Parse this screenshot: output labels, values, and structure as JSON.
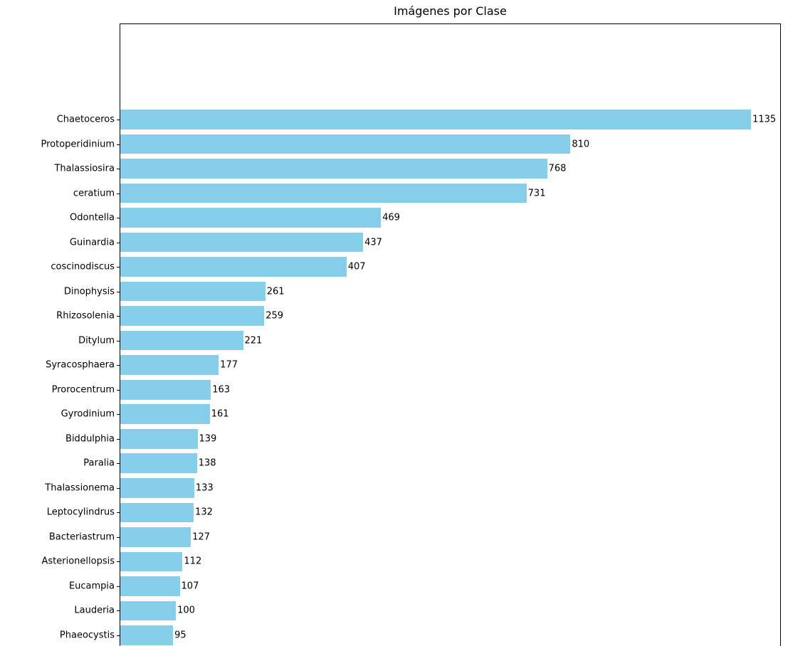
{
  "chart_data": {
    "type": "bar",
    "orientation": "horizontal",
    "title": "Imágenes por Clase",
    "categories": [
      "Chaetoceros",
      "Protoperidinium",
      "Thalassiosira",
      "ceratium",
      "Odontella",
      "Guinardia",
      "coscinodiscus",
      "Dinophysis",
      "Rhizosolenia",
      "Ditylum",
      "Syracosphaera",
      "Prorocentrum",
      "Gyrodinium",
      "Biddulphia",
      "Paralia",
      "Thalassionema",
      "Leptocylindrus",
      "Bacteriastrum",
      "Asterionellopsis",
      "Eucampia",
      "Lauderia",
      "Phaeocystis"
    ],
    "values": [
      1135,
      810,
      768,
      731,
      469,
      437,
      407,
      261,
      259,
      221,
      177,
      163,
      161,
      139,
      138,
      133,
      132,
      127,
      112,
      107,
      100,
      95
    ],
    "xlabel": "",
    "ylabel": "",
    "xlim": [
      0,
      1190
    ],
    "grid": false,
    "legend": false,
    "value_labels": true,
    "bar_color": "#87ceeb",
    "text_color": "#000000",
    "notes": "bars sorted descending top to bottom; empty space above first bar; bottom axis cut off at figure edge"
  }
}
